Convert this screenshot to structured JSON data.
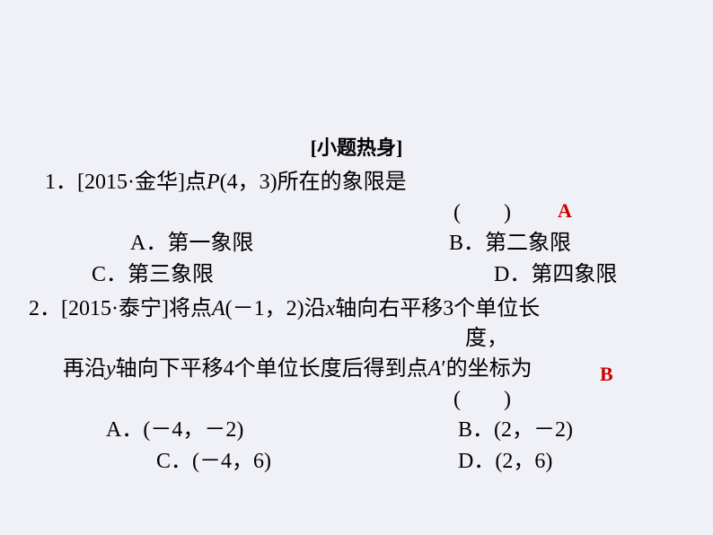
{
  "section_title": "[小题热身]",
  "background_color": "#f0f0f7",
  "text_color": "#000000",
  "answer_color": "#cc0000",
  "q1": {
    "number": "1．",
    "source": "[2015·金华]",
    "stem_part1": "点",
    "point_var": "P",
    "point_coords": "(4，3)",
    "stem_part2": "所在的象限是",
    "paren": "(　　)",
    "opt_a": "A．第一象限",
    "opt_b": "B．第二象限",
    "opt_c": "C．第三象限",
    "opt_d": "D．第四象限",
    "answer": "A"
  },
  "q2": {
    "number": "2．",
    "source": "[2015·泰宁]",
    "stem_p1": "将点",
    "var_a": "A",
    "coords_a": "(－1，2)",
    "stem_p2": "沿",
    "var_x": "x",
    "stem_p3": "轴向右平移3个单位长",
    "stem_p4": "度，",
    "stem_p5": "再沿",
    "var_y": "y",
    "stem_p6": "轴向下平移4个单位长度后得到点",
    "var_a2": "A",
    "prime": "′",
    "stem_p7": "的坐标为",
    "paren": "(　　)",
    "opt_a": "A．(－4，－2)",
    "opt_b": "B．(2，－2)",
    "opt_c": "C．(－4，6)",
    "opt_d": "D．(2，6)",
    "answer": "B"
  }
}
